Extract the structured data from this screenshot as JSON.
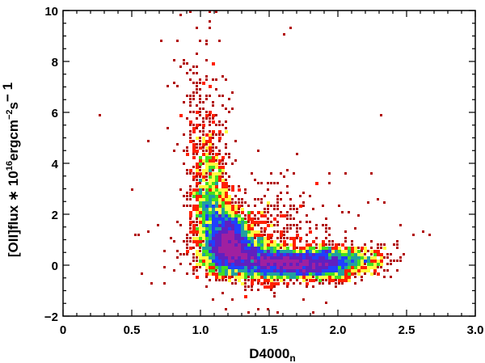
{
  "chart_data": {
    "type": "scatter",
    "title": "",
    "xlabel_main": "D4000",
    "xlabel_sub": "n",
    "ylabel_main": "[OII]flux ∗ 10",
    "ylabel_exp1": "16",
    "ylabel_mid": "ergcm",
    "ylabel_exp2": "−2",
    "ylabel_end": "s",
    "ylabel_exp3": "− 1",
    "xlim": [
      0,
      3.0
    ],
    "ylim": [
      -2,
      10
    ],
    "x_ticks": [
      0,
      0.5,
      1.0,
      1.5,
      2.0,
      2.5,
      3.0
    ],
    "x_tick_labels": [
      "0",
      "0.5",
      "1.0",
      "1.5",
      "2.0",
      "2.5",
      "3.0"
    ],
    "y_ticks": [
      -2,
      0,
      2,
      4,
      6,
      8,
      10
    ],
    "y_tick_labels": [
      "−2",
      "0",
      "2",
      "4",
      "6",
      "8",
      "10"
    ],
    "grid": false,
    "legend": "none",
    "density_colors": [
      "#b00000",
      "#ff2000",
      "#ffd000",
      "#ffff40",
      "#40e020",
      "#20a0a0",
      "#2040ff",
      "#6020c0",
      "#a020a0"
    ],
    "density_components": [
      {
        "x": 1.2,
        "y": 0.95,
        "sx": 0.075,
        "sy": 0.55,
        "n": 2600
      },
      {
        "x": 1.32,
        "y": 0.35,
        "sx": 0.14,
        "sy": 0.35,
        "n": 1800
      },
      {
        "x": 1.65,
        "y": 0.05,
        "sx": 0.18,
        "sy": 0.28,
        "n": 3200
      },
      {
        "x": 1.95,
        "y": 0.1,
        "sx": 0.12,
        "sy": 0.3,
        "n": 1000
      },
      {
        "x": 1.08,
        "y": 2.2,
        "sx": 0.07,
        "sy": 0.9,
        "n": 900
      },
      {
        "x": 1.06,
        "y": 4.0,
        "sx": 0.07,
        "sy": 1.3,
        "n": 320
      },
      {
        "x": 1.0,
        "y": 6.5,
        "sx": 0.09,
        "sy": 1.6,
        "n": 110
      },
      {
        "x": 1.45,
        "y": 1.2,
        "sx": 0.28,
        "sy": 1.1,
        "n": 500
      },
      {
        "x": 2.2,
        "y": 0.2,
        "sx": 0.1,
        "sy": 0.3,
        "n": 220
      }
    ],
    "outliers": [
      [
        0.26,
        5.9
      ],
      [
        0.62,
        4.85
      ],
      [
        0.5,
        2.9
      ],
      [
        0.52,
        1.15
      ],
      [
        0.55,
        1.2
      ],
      [
        0.58,
        -0.4
      ],
      [
        0.65,
        -0.75
      ],
      [
        0.85,
        9.8
      ],
      [
        1.12,
        9.9
      ],
      [
        1.65,
        9.3
      ],
      [
        1.6,
        9.0
      ],
      [
        2.31,
        5.9
      ],
      [
        2.24,
        3.65
      ],
      [
        2.3,
        2.6
      ],
      [
        2.35,
        2.4
      ],
      [
        2.66,
        1.2
      ],
      [
        2.62,
        1.25
      ],
      [
        2.55,
        1.15
      ],
      [
        2.45,
        1.5
      ],
      [
        2.42,
        0.8
      ],
      [
        1.57,
        -1.85
      ],
      [
        1.5,
        -1.7
      ],
      [
        1.42,
        -1.75
      ],
      [
        1.33,
        -1.3
      ],
      [
        1.95,
        3.55
      ],
      [
        1.73,
        2.7
      ],
      [
        1.85,
        3.2
      ]
    ]
  }
}
